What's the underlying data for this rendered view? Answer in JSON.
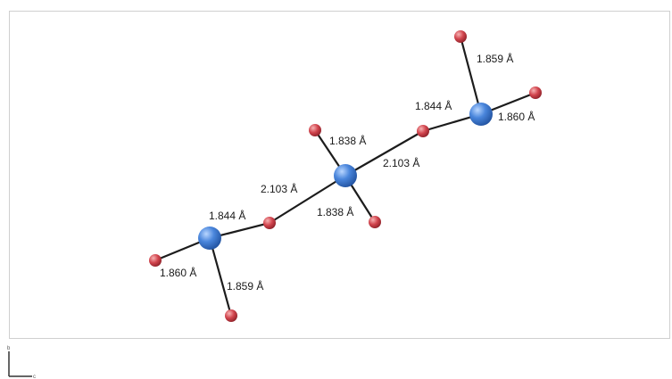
{
  "structure": {
    "atoms": [
      {
        "id": "o1",
        "element": "O"
      },
      {
        "id": "v1",
        "element": "V"
      },
      {
        "id": "o2",
        "element": "O"
      },
      {
        "id": "o3",
        "element": "O"
      },
      {
        "id": "o4",
        "element": "O"
      },
      {
        "id": "o5",
        "element": "O"
      },
      {
        "id": "v2",
        "element": "V"
      },
      {
        "id": "o6",
        "element": "O"
      },
      {
        "id": "o7",
        "element": "O"
      },
      {
        "id": "v3",
        "element": "V"
      },
      {
        "id": "o8",
        "element": "O"
      },
      {
        "id": "o9",
        "element": "O"
      }
    ],
    "bonds": [
      {
        "from": "v3",
        "to": "o8",
        "label": "1.859 Å"
      },
      {
        "from": "v3",
        "to": "o9",
        "label": "1.860 Å"
      },
      {
        "from": "v3",
        "to": "o7",
        "label": "1.844 Å"
      },
      {
        "from": "v2",
        "to": "o5",
        "label": "1.838 Å"
      },
      {
        "from": "v2",
        "to": "o7",
        "label": "2.103 Å"
      },
      {
        "from": "v2",
        "to": "o4",
        "label": "2.103 Å"
      },
      {
        "from": "v2",
        "to": "o6",
        "label": "1.838 Å"
      },
      {
        "from": "v1",
        "to": "o4",
        "label": "1.844 Å"
      },
      {
        "from": "v1",
        "to": "o1",
        "label": "1.860 Å"
      },
      {
        "from": "v1",
        "to": "o3",
        "label": "1.859 Å"
      }
    ]
  },
  "colors": {
    "metal": "#3f7fd6",
    "oxygen": "#cc3f48",
    "bond": "#1c1c1c"
  },
  "axes": {
    "up_label": "b",
    "right_label": "c"
  }
}
